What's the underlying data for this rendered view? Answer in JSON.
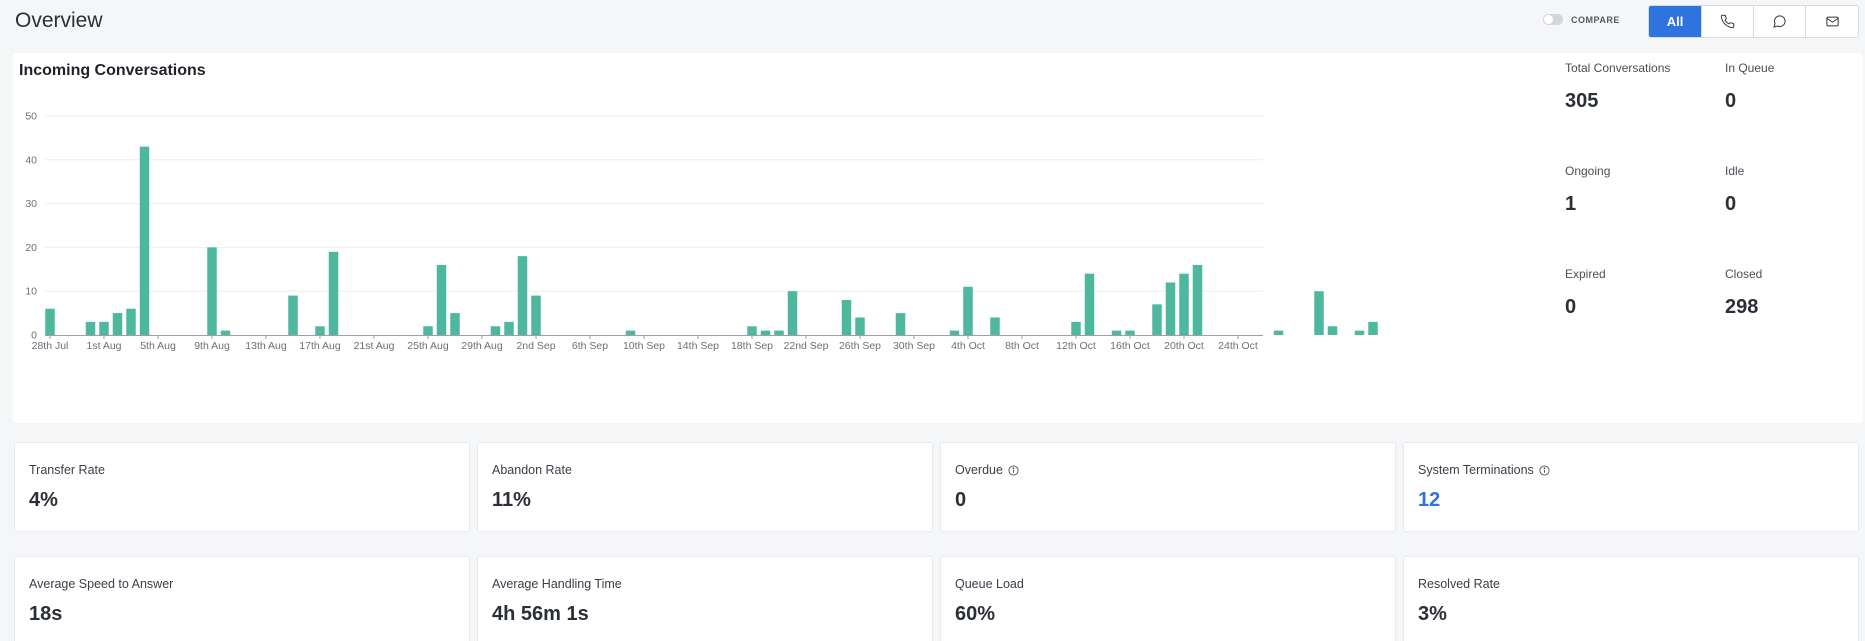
{
  "header": {
    "title": "Overview",
    "compare_label": "COMPARE",
    "channels": {
      "all_label": "All"
    }
  },
  "chart_panel": {
    "title": "Incoming Conversations"
  },
  "chart_data": {
    "type": "bar",
    "title": "Incoming Conversations",
    "xlabel": "",
    "ylabel": "",
    "ylim": [
      0,
      50
    ],
    "yticks": [
      0,
      10,
      20,
      30,
      40,
      50
    ],
    "tick_labels": [
      "28th Jul",
      "1st Aug",
      "5th Aug",
      "9th Aug",
      "13th Aug",
      "17th Aug",
      "21st Aug",
      "25th Aug",
      "29th Aug",
      "2nd Sep",
      "6th Sep",
      "10th Sep",
      "14th Sep",
      "18th Sep",
      "22nd Sep",
      "26th Sep",
      "30th Sep",
      "4th Oct",
      "8th Oct",
      "12th Oct",
      "16th Oct",
      "20th Oct",
      "24th Oct"
    ],
    "days_per_tick": 4,
    "start_label": "28th Jul",
    "values": [
      6,
      0,
      0,
      3,
      3,
      5,
      6,
      43,
      0,
      0,
      0,
      0,
      20,
      1,
      0,
      0,
      0,
      0,
      9,
      0,
      2,
      19,
      0,
      0,
      0,
      0,
      0,
      0,
      2,
      16,
      5,
      0,
      0,
      2,
      3,
      18,
      9,
      0,
      0,
      0,
      0,
      0,
      0,
      1,
      0,
      0,
      0,
      0,
      0,
      0,
      0,
      0,
      2,
      1,
      1,
      10,
      0,
      0,
      0,
      8,
      4,
      0,
      0,
      5,
      0,
      0,
      0,
      1,
      11,
      0,
      4,
      0,
      0,
      0,
      0,
      0,
      3,
      14,
      0,
      1,
      1,
      0,
      7,
      12,
      14,
      16,
      0,
      0,
      0,
      0,
      0,
      1,
      0,
      0,
      10,
      2,
      0,
      1,
      3,
      0
    ],
    "color": "#4db89d",
    "grid": true
  },
  "stats": {
    "total_conversations": {
      "label": "Total Conversations",
      "value": "305"
    },
    "in_queue": {
      "label": "In Queue",
      "value": "0"
    },
    "ongoing": {
      "label": "Ongoing",
      "value": "1"
    },
    "idle": {
      "label": "Idle",
      "value": "0"
    },
    "expired": {
      "label": "Expired",
      "value": "0"
    },
    "closed": {
      "label": "Closed",
      "value": "298"
    }
  },
  "metrics_row1": {
    "transfer_rate": {
      "label": "Transfer Rate",
      "value": "4%"
    },
    "abandon_rate": {
      "label": "Abandon Rate",
      "value": "11%"
    },
    "overdue": {
      "label": "Overdue",
      "value": "0"
    },
    "system_terminations": {
      "label": "System Terminations",
      "value": "12"
    }
  },
  "metrics_row2": {
    "avg_speed_to_answer": {
      "label": "Average Speed to Answer",
      "value": "18s"
    },
    "avg_handling_time": {
      "label": "Average Handling Time",
      "value": "4h 56m 1s"
    },
    "queue_load": {
      "label": "Queue Load",
      "value": "60%"
    },
    "resolved_rate": {
      "label": "Resolved Rate",
      "value": "3%"
    }
  },
  "colors": {
    "accent": "#2f73e0",
    "bar": "#4db89d"
  }
}
